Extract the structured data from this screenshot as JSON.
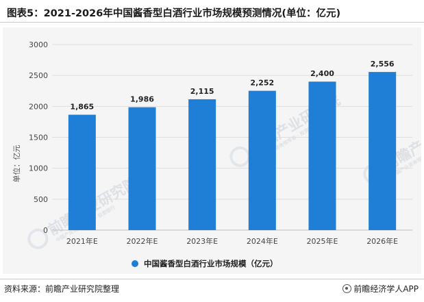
{
  "title": "图表5：2021-2026年中国酱香型白酒行业市场规模预测情况(单位：亿元)",
  "chart_data": {
    "type": "bar",
    "categories": [
      "2021年E",
      "2022年E",
      "2023年E",
      "2024年E",
      "2025年E",
      "2026年E"
    ],
    "series": [
      {
        "name": "中国酱香型白酒行业市场规模（亿元）",
        "values": [
          1865,
          1986,
          2115,
          2252,
          2400,
          2556
        ],
        "labels": [
          "1,865",
          "1,986",
          "2,115",
          "2,252",
          "2,400",
          "2,556"
        ],
        "color": "#1f7fd6"
      }
    ],
    "ylabel": "单位：亿元",
    "ylim": [
      0,
      3000
    ],
    "yticks": [
      0,
      500,
      1000,
      1500,
      2000,
      2500,
      3000
    ],
    "grid": true,
    "legend_position": "bottom"
  },
  "watermark": {
    "text": "前瞻产业研究院",
    "subtext": "中国产业咨询领导者 · 投资银行"
  },
  "footer": {
    "source": "资料来源：前瞻产业研究院整理",
    "brand": "前瞻经济学人APP",
    "brand_icon": "qianzhan-logo-icon"
  }
}
